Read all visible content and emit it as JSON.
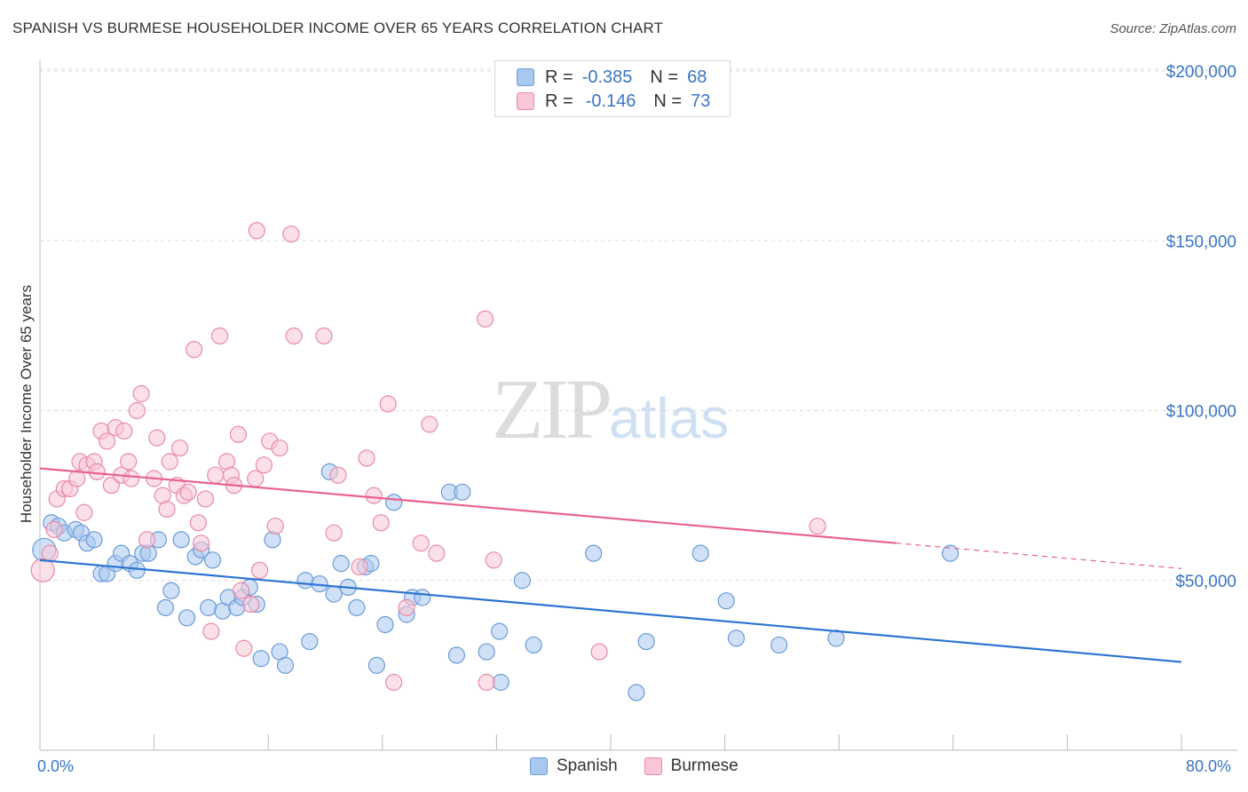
{
  "title": "SPANISH VS BURMESE HOUSEHOLDER INCOME OVER 65 YEARS CORRELATION CHART",
  "source": "Source: ZipAtlas.com",
  "watermark": {
    "zip": "ZIP",
    "atlas": "atlas"
  },
  "legend": {
    "rows": [
      {
        "r_label": "R =",
        "r_value": "-0.385",
        "n_label": "N =",
        "n_value": "68",
        "color": "#a9c8f0",
        "border": "#6a9bd8"
      },
      {
        "r_label": "R =",
        "r_value": "-0.146",
        "n_label": "N =",
        "n_value": "73",
        "color": "#f9c6d5",
        "border": "#e88aa8"
      }
    ]
  },
  "bottom_legend": [
    {
      "label": "Spanish",
      "color": "#a9c8f0",
      "border": "#6a9bd8"
    },
    {
      "label": "Burmese",
      "color": "#f9c6d5",
      "border": "#e88aa8"
    }
  ],
  "chart_data": {
    "type": "scatter",
    "title": "SPANISH VS BURMESE HOUSEHOLDER INCOME OVER 65 YEARS CORRELATION CHART",
    "xlabel": "",
    "ylabel": "Householder Income Over 65 years",
    "xlim": [
      0,
      80
    ],
    "ylim": [
      0,
      210000
    ],
    "x_tick_labels": [
      "0.0%",
      "80.0%"
    ],
    "y_ticks": [
      50000,
      100000,
      150000,
      200000
    ],
    "y_tick_labels": [
      "$50,000",
      "$100,000",
      "$150,000",
      "$200,000"
    ],
    "grid": true,
    "legend_position": "top-center",
    "series": [
      {
        "name": "Spanish",
        "color": "#6a9bd8",
        "fill": "#a9c8f0",
        "trend_color": "#2d74d2",
        "trend": {
          "x": [
            0,
            80
          ],
          "y": [
            56000,
            26000
          ]
        },
        "points": [
          [
            0.3,
            59000
          ],
          [
            0.8,
            67000
          ],
          [
            1.3,
            66000
          ],
          [
            1.7,
            64000
          ],
          [
            2.5,
            65000
          ],
          [
            2.9,
            64000
          ],
          [
            3.3,
            61000
          ],
          [
            3.8,
            62000
          ],
          [
            4.3,
            52000
          ],
          [
            4.7,
            52000
          ],
          [
            5.3,
            55000
          ],
          [
            5.7,
            58000
          ],
          [
            6.3,
            55000
          ],
          [
            6.8,
            53000
          ],
          [
            7.2,
            58000
          ],
          [
            7.6,
            58000
          ],
          [
            8.3,
            62000
          ],
          [
            8.8,
            42000
          ],
          [
            9.2,
            47000
          ],
          [
            9.9,
            62000
          ],
          [
            10.3,
            39000
          ],
          [
            10.9,
            57000
          ],
          [
            11.3,
            59000
          ],
          [
            11.8,
            42000
          ],
          [
            12.1,
            56000
          ],
          [
            12.8,
            41000
          ],
          [
            13.2,
            45000
          ],
          [
            13.8,
            42000
          ],
          [
            14.2,
            45000
          ],
          [
            14.7,
            48000
          ],
          [
            15.2,
            43000
          ],
          [
            15.5,
            27000
          ],
          [
            16.3,
            62000
          ],
          [
            16.8,
            29000
          ],
          [
            17.2,
            25000
          ],
          [
            18.6,
            50000
          ],
          [
            18.9,
            32000
          ],
          [
            19.6,
            49000
          ],
          [
            20.3,
            82000
          ],
          [
            20.6,
            46000
          ],
          [
            21.1,
            55000
          ],
          [
            21.6,
            48000
          ],
          [
            22.2,
            42000
          ],
          [
            22.8,
            54000
          ],
          [
            23.2,
            55000
          ],
          [
            23.6,
            25000
          ],
          [
            24.2,
            37000
          ],
          [
            24.8,
            73000
          ],
          [
            25.7,
            40000
          ],
          [
            26.1,
            45000
          ],
          [
            26.8,
            45000
          ],
          [
            28.7,
            76000
          ],
          [
            29.6,
            76000
          ],
          [
            29.2,
            28000
          ],
          [
            31.3,
            29000
          ],
          [
            32.2,
            35000
          ],
          [
            32.3,
            20000
          ],
          [
            33.8,
            50000
          ],
          [
            34.6,
            31000
          ],
          [
            38.8,
            58000
          ],
          [
            41.8,
            17000
          ],
          [
            42.5,
            32000
          ],
          [
            46.3,
            58000
          ],
          [
            48.1,
            44000
          ],
          [
            48.8,
            33000
          ],
          [
            51.8,
            31000
          ],
          [
            55.8,
            33000
          ],
          [
            63.8,
            58000
          ]
        ]
      },
      {
        "name": "Burmese",
        "color": "#e88aa8",
        "fill": "#f9c6d5",
        "trend_color": "#e8628f",
        "trend": {
          "x": [
            0,
            60
          ],
          "y": [
            83000,
            61000
          ]
        },
        "trend_dashed": {
          "x": [
            60,
            80
          ],
          "y": [
            61000,
            53500
          ]
        },
        "points": [
          [
            0.2,
            53000
          ],
          [
            1.0,
            65000
          ],
          [
            1.2,
            74000
          ],
          [
            1.7,
            77000
          ],
          [
            2.1,
            77000
          ],
          [
            2.6,
            80000
          ],
          [
            2.8,
            85000
          ],
          [
            3.1,
            70000
          ],
          [
            3.3,
            84000
          ],
          [
            3.8,
            85000
          ],
          [
            4.0,
            82000
          ],
          [
            4.3,
            94000
          ],
          [
            4.7,
            91000
          ],
          [
            5.0,
            78000
          ],
          [
            5.3,
            95000
          ],
          [
            5.7,
            81000
          ],
          [
            5.9,
            94000
          ],
          [
            6.2,
            85000
          ],
          [
            6.4,
            80000
          ],
          [
            6.8,
            100000
          ],
          [
            7.1,
            105000
          ],
          [
            7.5,
            62000
          ],
          [
            8.0,
            80000
          ],
          [
            8.2,
            92000
          ],
          [
            8.6,
            75000
          ],
          [
            8.9,
            71000
          ],
          [
            9.1,
            85000
          ],
          [
            9.6,
            78000
          ],
          [
            9.8,
            89000
          ],
          [
            10.1,
            75000
          ],
          [
            10.4,
            76000
          ],
          [
            10.8,
            118000
          ],
          [
            11.1,
            67000
          ],
          [
            11.3,
            61000
          ],
          [
            11.6,
            74000
          ],
          [
            12.0,
            35000
          ],
          [
            12.3,
            81000
          ],
          [
            12.6,
            122000
          ],
          [
            13.1,
            85000
          ],
          [
            13.4,
            81000
          ],
          [
            13.6,
            78000
          ],
          [
            13.9,
            93000
          ],
          [
            14.1,
            47000
          ],
          [
            14.3,
            30000
          ],
          [
            14.8,
            43000
          ],
          [
            15.1,
            80000
          ],
          [
            15.4,
            53000
          ],
          [
            15.7,
            84000
          ],
          [
            16.1,
            91000
          ],
          [
            16.5,
            66000
          ],
          [
            16.8,
            89000
          ],
          [
            15.2,
            153000
          ],
          [
            17.6,
            152000
          ],
          [
            17.8,
            122000
          ],
          [
            19.9,
            122000
          ],
          [
            20.6,
            64000
          ],
          [
            20.9,
            81000
          ],
          [
            22.4,
            54000
          ],
          [
            22.9,
            86000
          ],
          [
            23.4,
            75000
          ],
          [
            23.9,
            67000
          ],
          [
            24.4,
            102000
          ],
          [
            24.8,
            20000
          ],
          [
            25.7,
            42000
          ],
          [
            26.7,
            61000
          ],
          [
            27.3,
            96000
          ],
          [
            27.8,
            58000
          ],
          [
            31.2,
            127000
          ],
          [
            31.3,
            20000
          ],
          [
            39.2,
            29000
          ],
          [
            31.8,
            56000
          ],
          [
            54.5,
            66000
          ],
          [
            0.7,
            58000
          ]
        ]
      }
    ]
  }
}
